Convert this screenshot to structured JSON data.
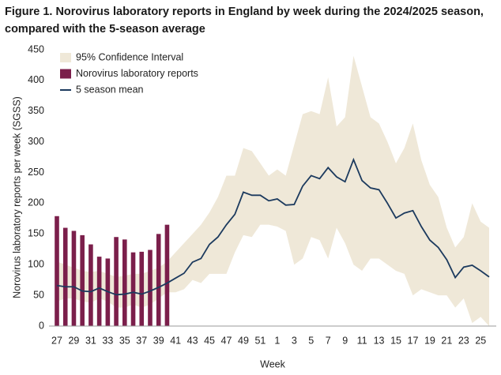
{
  "chart_data": {
    "type": "combo",
    "title": "Figure 1. Norovirus laboratory reports in England by week during the 2024/2025 season, compared with the 5-season average",
    "x_label": "Week",
    "y_label": "Norovirus laboratory reports per week (SGSS)",
    "categories": [
      "27",
      null,
      "29",
      null,
      "31",
      null,
      "33",
      null,
      "35",
      null,
      "37",
      null,
      "39",
      null,
      "41",
      null,
      "43",
      null,
      "45",
      null,
      "47",
      null,
      "49",
      null,
      "51",
      null,
      "1",
      null,
      "3",
      null,
      "5",
      null,
      "7",
      null,
      "9",
      null,
      "11",
      null,
      "13",
      null,
      "15",
      null,
      "17",
      null,
      "19",
      null,
      "21",
      null,
      "23",
      null,
      "25",
      null
    ],
    "ylim": [
      0,
      450
    ],
    "yticks": [
      0,
      50,
      100,
      150,
      200,
      250,
      300,
      350,
      400,
      450
    ],
    "legend": "top-left",
    "series": [
      {
        "name": "95% Confidence Interval",
        "type": "band",
        "color": "#efe8d8",
        "upper": [
          105,
          100,
          95,
          90,
          88,
          90,
          85,
          80,
          82,
          85,
          85,
          90,
          95,
          105,
          120,
          135,
          150,
          165,
          185,
          210,
          245,
          245,
          290,
          285,
          265,
          245,
          255,
          245,
          295,
          345,
          350,
          345,
          405,
          325,
          340,
          440,
          390,
          340,
          330,
          300,
          265,
          290,
          330,
          270,
          230,
          210,
          160,
          128,
          145,
          200,
          170,
          160
        ],
        "lower": [
          40,
          45,
          45,
          40,
          38,
          45,
          40,
          30,
          30,
          35,
          30,
          35,
          45,
          55,
          55,
          60,
          75,
          70,
          85,
          85,
          85,
          120,
          148,
          145,
          165,
          165,
          162,
          155,
          100,
          110,
          145,
          140,
          110,
          160,
          135,
          100,
          90,
          110,
          110,
          100,
          90,
          85,
          50,
          60,
          55,
          50,
          50,
          30,
          45,
          5,
          15,
          0
        ]
      },
      {
        "name": "Norovirus laboratory reports",
        "type": "bar",
        "color": "#7b1f4b",
        "values": [
          179,
          160,
          155,
          148,
          133,
          113,
          110,
          145,
          141,
          120,
          121,
          124,
          150,
          165,
          null,
          null,
          null,
          null,
          null,
          null,
          null,
          null,
          null,
          null,
          null,
          null,
          null,
          null,
          null,
          null,
          null,
          null,
          null,
          null,
          null,
          null,
          null,
          null,
          null,
          null,
          null,
          null,
          null,
          null,
          null,
          null,
          null,
          null,
          null,
          null,
          null,
          null
        ]
      },
      {
        "name": "5 season mean",
        "type": "line",
        "color": "#1c3a5e",
        "values": [
          66,
          64,
          64,
          57,
          56,
          62,
          56,
          51,
          52,
          55,
          52,
          57,
          63,
          70,
          78,
          86,
          104,
          110,
          133,
          145,
          165,
          182,
          218,
          213,
          213,
          204,
          207,
          197,
          198,
          228,
          245,
          240,
          258,
          243,
          235,
          271,
          237,
          225,
          222,
          200,
          176,
          184,
          188,
          162,
          140,
          128,
          108,
          79,
          96,
          99,
          90,
          80
        ]
      }
    ]
  }
}
